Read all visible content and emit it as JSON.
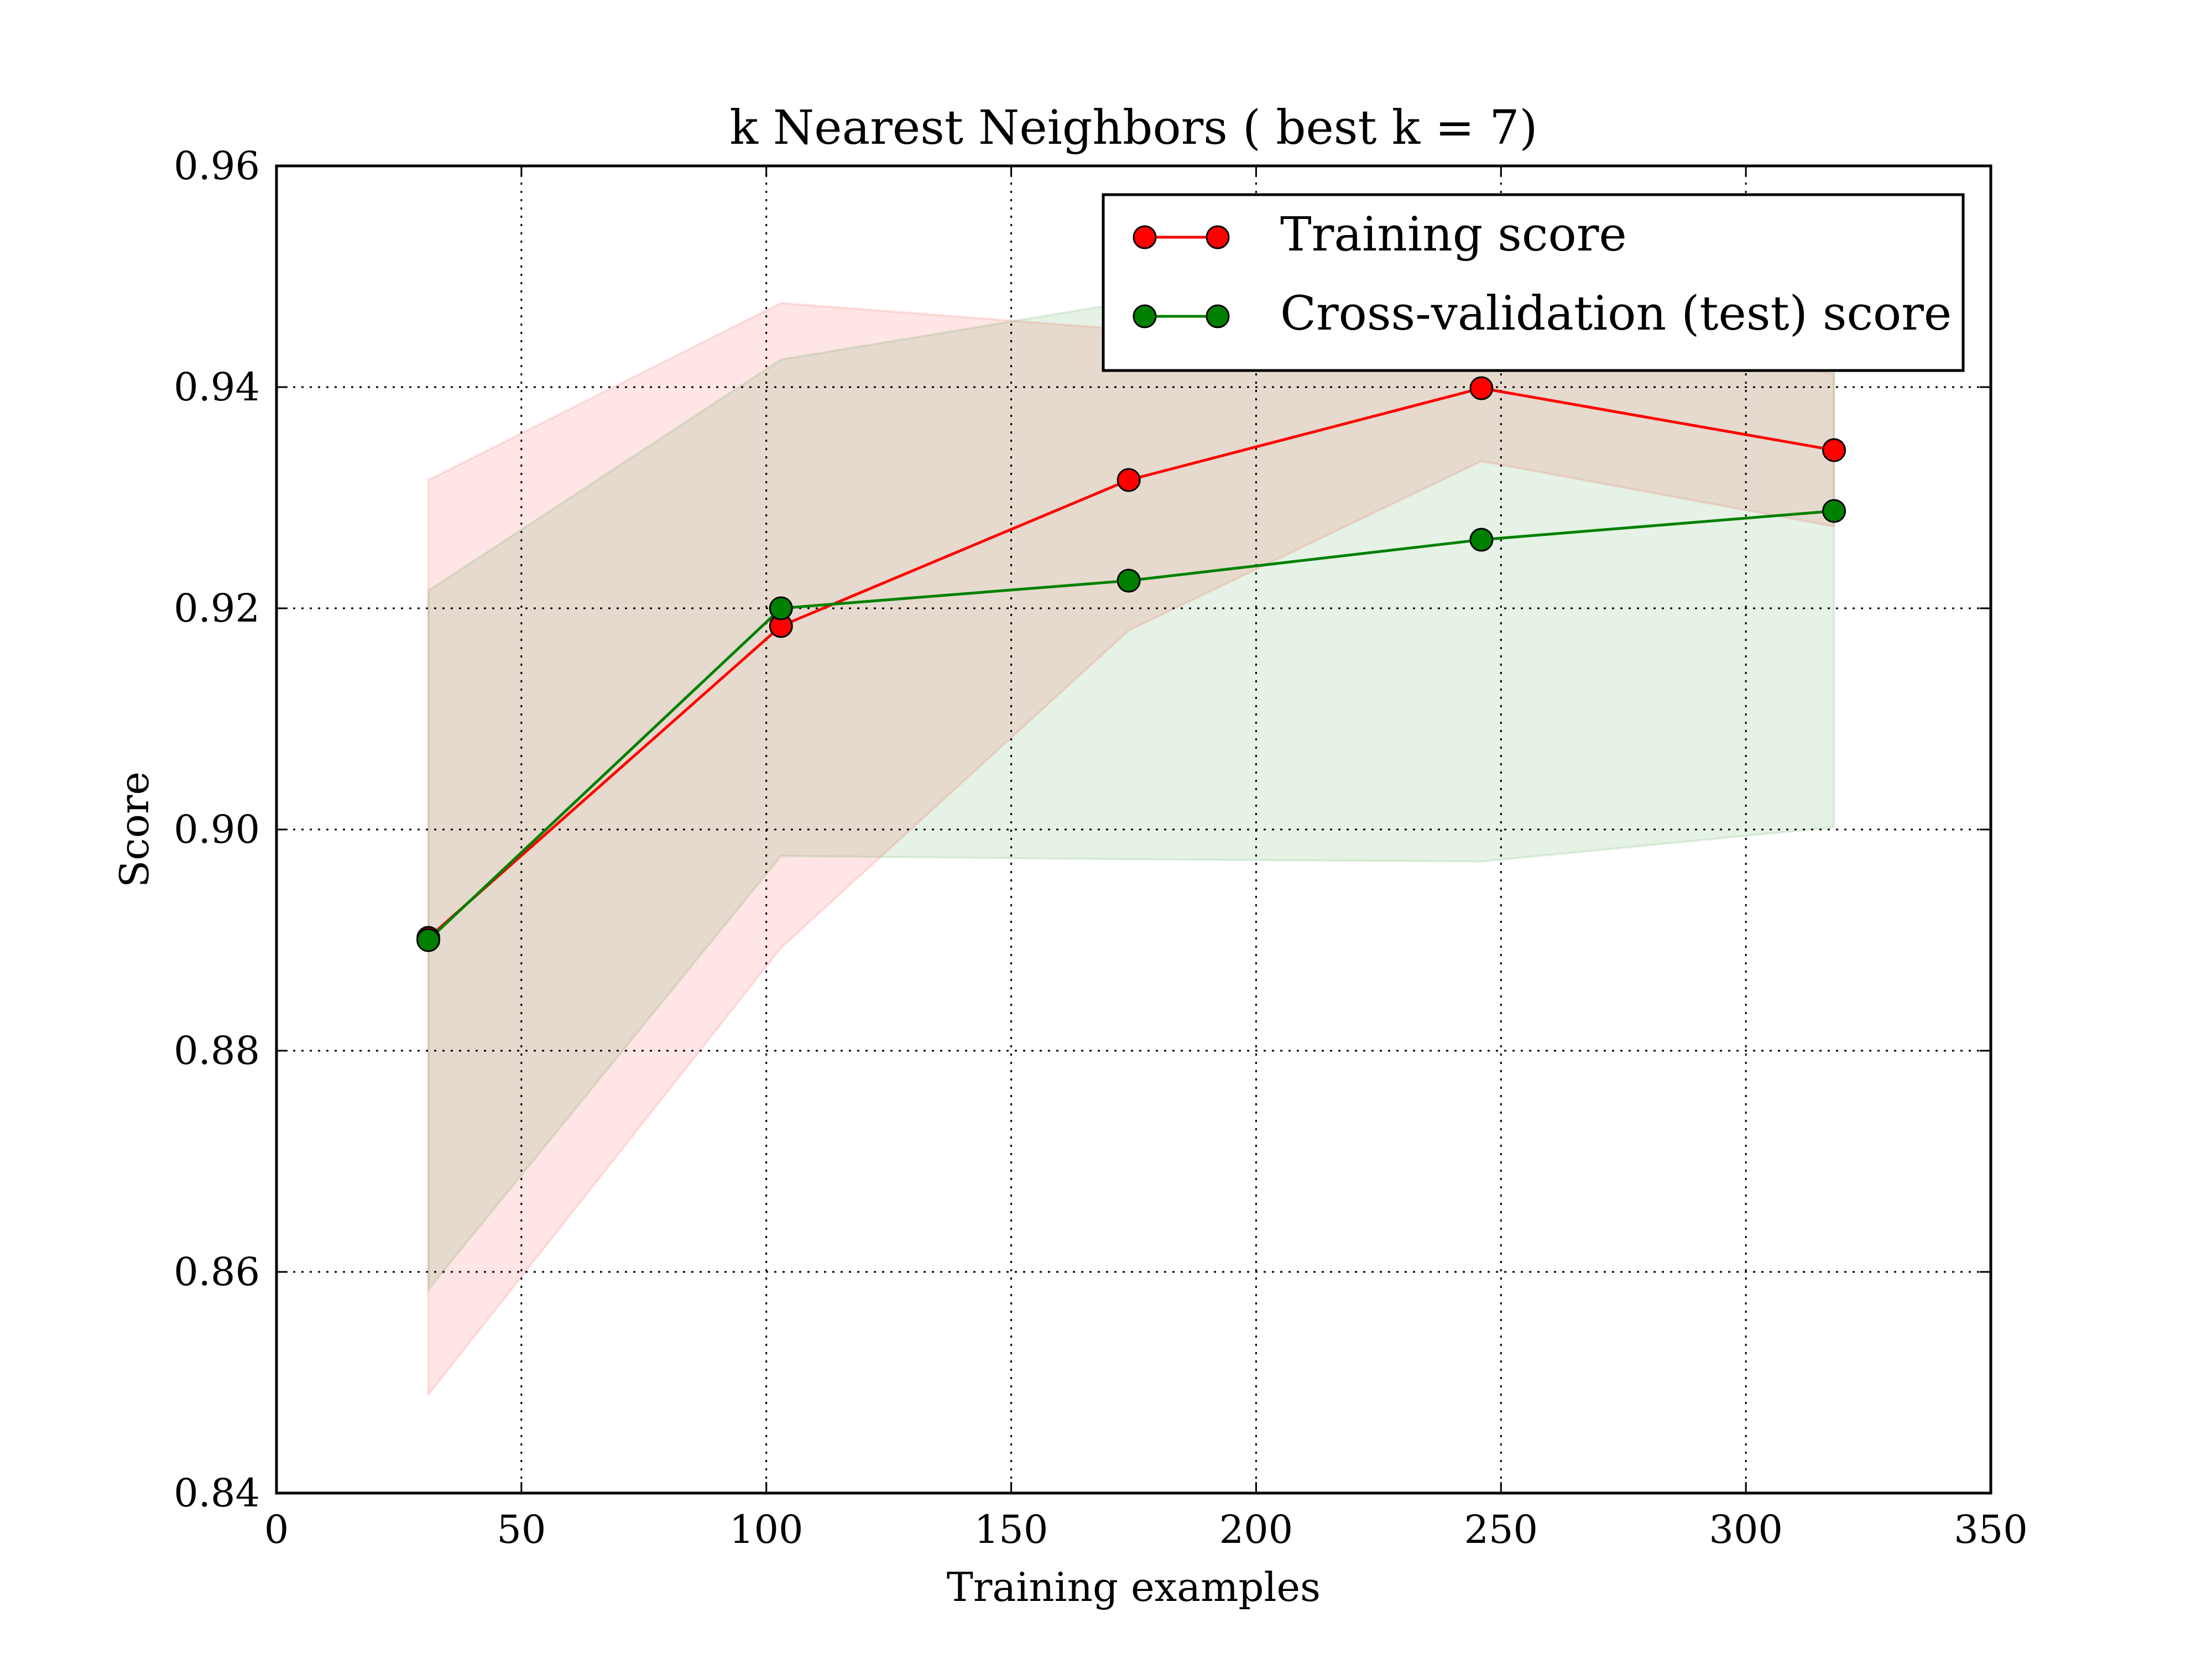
{
  "chart_data": {
    "type": "line",
    "title": "k Nearest Neighbors ( best k = 7)",
    "xlabel": "Training examples",
    "ylabel": "Score",
    "xlim": [
      0,
      350
    ],
    "ylim": [
      0.84,
      0.96
    ],
    "xticks": [
      0,
      50,
      100,
      150,
      200,
      250,
      300,
      350
    ],
    "xtick_labels": [
      "0",
      "50",
      "100",
      "150",
      "200",
      "250",
      "300",
      "350"
    ],
    "yticks": [
      0.84,
      0.86,
      0.88,
      0.9,
      0.92,
      0.94,
      0.96
    ],
    "ytick_labels": [
      "0.84",
      "0.86",
      "0.88",
      "0.90",
      "0.92",
      "0.94",
      "0.96"
    ],
    "grid": true,
    "legend_position": "top-right",
    "x": [
      31,
      103,
      174,
      246,
      318
    ],
    "series": [
      {
        "name": "Training score",
        "color": "#ff0000",
        "band_color": "#ff0000",
        "values": [
          0.8902,
          0.9184,
          0.9316,
          0.9399,
          0.9343
        ],
        "lower": [
          0.8489,
          0.8893,
          0.918,
          0.9333,
          0.9274
        ],
        "upper": [
          0.9316,
          0.9476,
          0.9452,
          0.9466,
          0.9412
        ]
      },
      {
        "name": "Cross-validation (test) score",
        "color": "#008000",
        "band_color": "#008000",
        "values": [
          0.89,
          0.92,
          0.9225,
          0.9262,
          0.9288
        ],
        "lower": [
          0.8584,
          0.8976,
          0.8973,
          0.8971,
          0.9002
        ],
        "upper": [
          0.9216,
          0.9425,
          0.9477,
          0.9553,
          0.9574
        ]
      }
    ]
  }
}
